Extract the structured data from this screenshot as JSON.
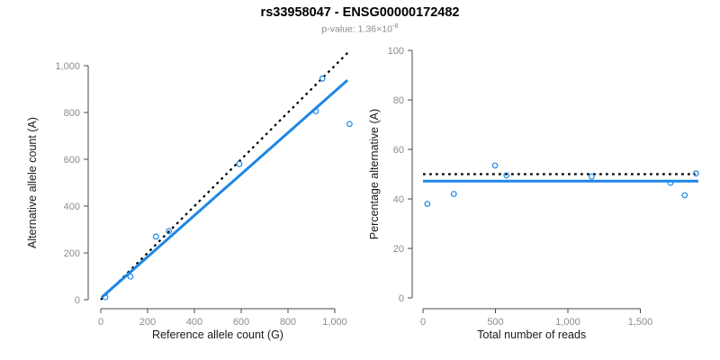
{
  "header": {
    "title": "rs33958047 - ENSG00000172482",
    "pvalue_prefix": "p-value: 1.36×10",
    "pvalue_exponent": "-8"
  },
  "colors": {
    "accent_blue": "#1e87e5",
    "dotted_black": "#000000",
    "axis_gray": "#4a4a4a",
    "tick_label_gray": "#8c8c8c"
  },
  "chart_data": [
    {
      "type": "scatter",
      "name": "allele-counts-scatter",
      "xlabel": "Reference allele count (G)",
      "ylabel": "Alternative allele count (A)",
      "xlim": [
        0,
        1070
      ],
      "ylim": [
        0,
        1070
      ],
      "xticks": {
        "values": [
          0,
          200,
          400,
          600,
          800,
          1000
        ],
        "labels": [
          "0",
          "200",
          "400",
          "600",
          "800",
          "1,000"
        ]
      },
      "yticks": {
        "values": [
          0,
          200,
          400,
          600,
          800,
          1000
        ],
        "labels": [
          "0",
          "200",
          "400",
          "600",
          "800",
          "1,000"
        ]
      },
      "grid": false,
      "legend": "none",
      "points": [
        [
          19,
          11
        ],
        [
          127,
          99
        ],
        [
          236,
          270
        ],
        [
          291,
          293
        ],
        [
          592,
          580
        ],
        [
          919,
          806
        ],
        [
          947,
          945
        ],
        [
          1063,
          751
        ]
      ],
      "lines": [
        {
          "name": "identity-line",
          "style": "dotted",
          "color": "#000000",
          "from": [
            0,
            0
          ],
          "to": [
            1065,
            1065
          ]
        },
        {
          "name": "regression-line",
          "style": "solid",
          "color": "#1e87e5",
          "from": [
            4,
            10
          ],
          "to": [
            1054,
            938
          ]
        }
      ]
    },
    {
      "type": "scatter",
      "name": "percentage-alternative-scatter",
      "xlabel": "Total number of reads",
      "ylabel": "Percentage alternative (A)",
      "xlim": [
        0,
        1900
      ],
      "ylim": [
        0,
        100
      ],
      "xticks": {
        "values": [
          0,
          500,
          1000,
          1500
        ],
        "labels": [
          "0",
          "500",
          "1,000",
          "1,500"
        ]
      },
      "yticks": {
        "values": [
          0,
          20,
          40,
          60,
          80,
          100
        ],
        "labels": [
          "0",
          "20",
          "40",
          "60",
          "80",
          "100"
        ]
      },
      "grid": false,
      "legend": "none",
      "points": [
        [
          30,
          38
        ],
        [
          213,
          42
        ],
        [
          497,
          53.5
        ],
        [
          576,
          49.5
        ],
        [
          1164,
          49
        ],
        [
          1708,
          46.5
        ],
        [
          1806,
          41.5
        ],
        [
          1884,
          50.3
        ]
      ],
      "lines": [
        {
          "name": "expected-50pct-line",
          "style": "dotted",
          "color": "#000000",
          "from": [
            0,
            50
          ],
          "to": [
            1880,
            50
          ]
        },
        {
          "name": "mean-percentage-line",
          "style": "solid",
          "color": "#1e87e5",
          "from": [
            0,
            47.2
          ],
          "to": [
            1900,
            47.2
          ]
        }
      ]
    }
  ]
}
